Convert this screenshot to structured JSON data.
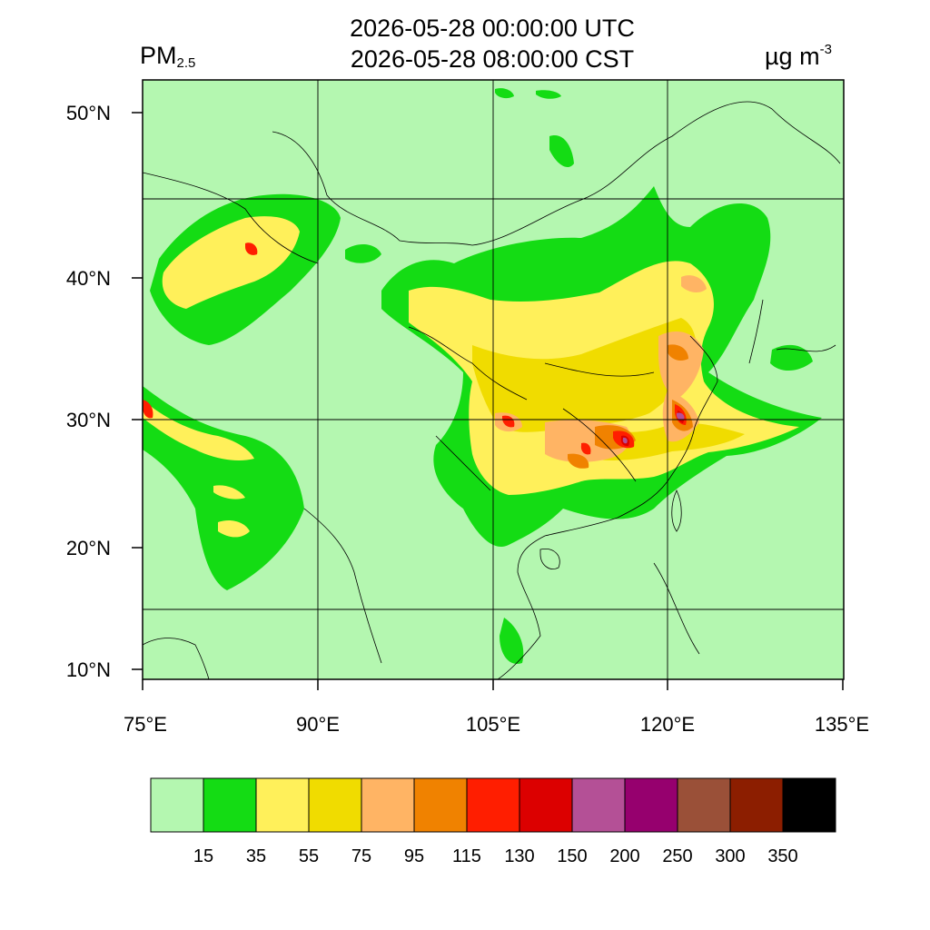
{
  "header": {
    "title_utc": "2026-05-28 00:00:00 UTC",
    "title_cst": "2026-05-28 08:00:00 CST",
    "variable_main": "PM",
    "variable_sub": "2.5",
    "unit_main": "µg m",
    "unit_sup": "-3"
  },
  "map": {
    "background_color": "#b4f7b0",
    "lat_labels": [
      "50°N",
      "40°N",
      "30°N",
      "20°N",
      "10°N"
    ],
    "lon_labels": [
      "75°E",
      "90°E",
      "105°E",
      "120°E",
      "135°E"
    ]
  },
  "colorbar": {
    "colors": [
      "#b4f7b0",
      "#14dc14",
      "#fff05a",
      "#f0dc00",
      "#ffb464",
      "#f08200",
      "#ff1e00",
      "#dc0000",
      "#b45096",
      "#96006e",
      "#9a5038",
      "#8c1e00",
      "#000000"
    ],
    "labels": [
      "15",
      "35",
      "55",
      "75",
      "95",
      "115",
      "130",
      "150",
      "200",
      "250",
      "300",
      "350"
    ]
  }
}
